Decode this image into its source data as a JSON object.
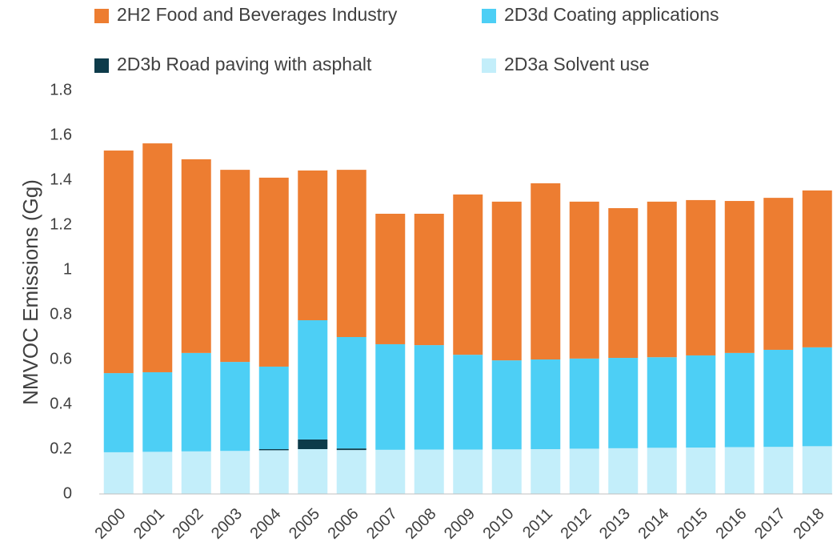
{
  "chart_data": {
    "type": "stacked_bar",
    "y_label": "NMVOC Emissions (Gg)",
    "categories": [
      "2000",
      "2001",
      "2002",
      "2003",
      "2004",
      "2005",
      "2006",
      "2007",
      "2008",
      "2009",
      "2010",
      "2011",
      "2012",
      "2013",
      "2014",
      "2015",
      "2016",
      "2017",
      "2018"
    ],
    "series": [
      {
        "name": "2H2 Food and Beverages Industry",
        "color": "#ED7D31",
        "values": [
          0.993,
          1.021,
          0.864,
          0.857,
          0.843,
          0.668,
          0.746,
          0.582,
          0.586,
          0.715,
          0.708,
          0.786,
          0.7,
          0.668,
          0.694,
          0.693,
          0.678,
          0.678,
          0.7
        ]
      },
      {
        "name": "2D3d Coating applications",
        "color": "#4DCFF5",
        "values": [
          0.353,
          0.355,
          0.439,
          0.397,
          0.368,
          0.532,
          0.497,
          0.471,
          0.466,
          0.423,
          0.397,
          0.4,
          0.402,
          0.403,
          0.404,
          0.411,
          0.42,
          0.433,
          0.441
        ]
      },
      {
        "name": "2D3b Road paving with asphalt",
        "color": "#0D3B4A",
        "values": [
          0,
          0,
          0,
          0,
          0.005,
          0.043,
          0.007,
          0,
          0,
          0,
          0,
          0,
          0,
          0,
          0,
          0,
          0,
          0,
          0
        ]
      },
      {
        "name": "2D3a Solvent use",
        "color": "#C3EEFA",
        "values": [
          0.186,
          0.188,
          0.19,
          0.192,
          0.195,
          0.2,
          0.196,
          0.197,
          0.198,
          0.198,
          0.199,
          0.2,
          0.202,
          0.204,
          0.206,
          0.207,
          0.209,
          0.21,
          0.213
        ]
      }
    ],
    "ylim": [
      0,
      1.8
    ],
    "yticks": [
      0,
      0.2,
      0.4,
      0.6,
      0.8,
      1,
      1.2,
      1.4,
      1.6,
      1.8
    ],
    "grid": false
  }
}
